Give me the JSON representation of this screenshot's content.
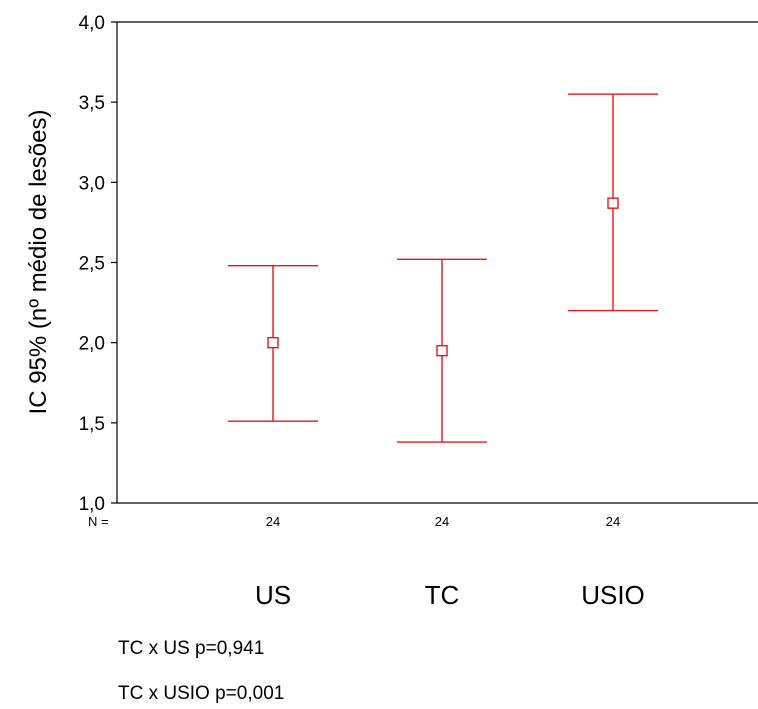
{
  "chart_data": {
    "type": "errorbar",
    "ylabel": "IC 95% (nº médio de lesões)",
    "xlabel": "",
    "ylim": [
      1.0,
      4.0
    ],
    "yticks": [
      "1,0",
      "1,5",
      "2,0",
      "2,5",
      "3,0",
      "3,5",
      "4,0"
    ],
    "n_label": "N =",
    "categories": [
      "US",
      "TC",
      "USIO"
    ],
    "n_values": [
      "24",
      "24",
      "24"
    ],
    "mean": [
      2.0,
      1.95,
      2.87
    ],
    "lower": [
      1.51,
      1.38,
      2.2
    ],
    "upper": [
      2.48,
      2.52,
      3.55
    ],
    "grid": false,
    "color": "#e8161b"
  },
  "notes": [
    "TC x US p=0,941",
    "TC x USIO p=0,001"
  ]
}
